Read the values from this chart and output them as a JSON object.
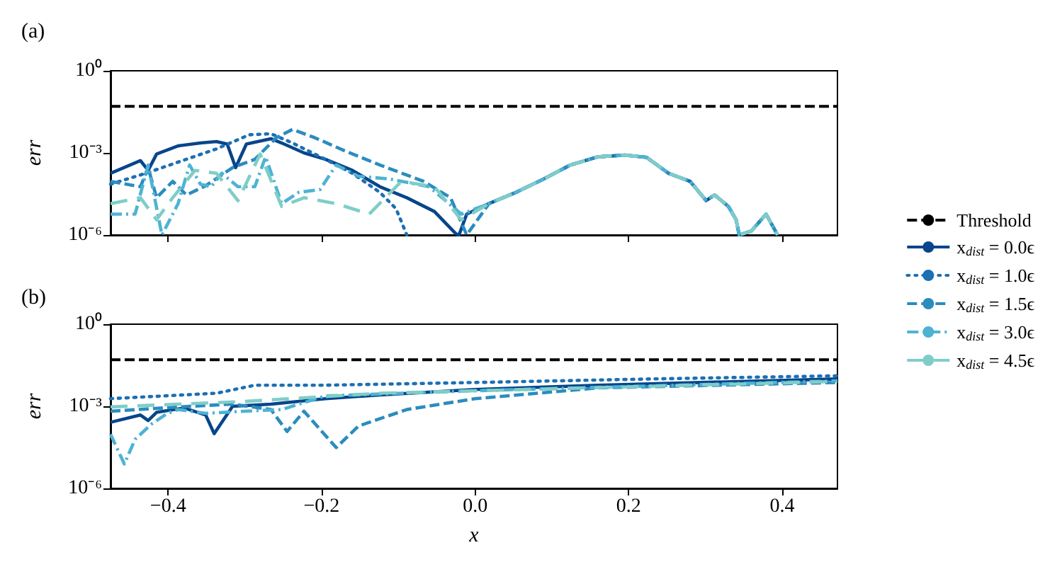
{
  "chart_data": [
    {
      "type": "line",
      "title": "(a)",
      "ylabel": "err",
      "log": "y",
      "tick_labels": "y",
      "marker": "none",
      "xlim": [
        -0.475,
        0.472
      ],
      "ylim": [
        1e-06,
        1
      ],
      "xticks": [
        {
          "value": -0.4,
          "label": null
        },
        {
          "value": -0.2,
          "label": null
        },
        {
          "value": 0,
          "label": null
        },
        {
          "value": 0.2,
          "label": null
        },
        {
          "value": 0.4,
          "label": null
        }
      ],
      "yticks": [
        {
          "value": 1e-06,
          "label": "10⁻⁶"
        },
        {
          "value": 0.001,
          "label": "10⁻³"
        },
        {
          "value": 1,
          "label": "10⁰"
        }
      ],
      "ref_lines": [
        {
          "axis": "y",
          "value": 0.05,
          "color": "#000000",
          "line_style": "dashed"
        }
      ],
      "series": [
        {
          "color": "#08458a",
          "line_style": "solid",
          "x": [
            -0.475,
            -0.436,
            -0.426,
            -0.415,
            -0.387,
            -0.358,
            -0.337,
            -0.323,
            -0.312,
            -0.298,
            -0.266,
            -0.252,
            -0.223,
            -0.195,
            -0.16,
            -0.124,
            -0.089,
            -0.053,
            -0.025,
            -0.021,
            -0.011,
            0.018,
            0.053,
            0.089,
            0.124,
            0.16,
            0.195,
            0.223,
            0.252,
            0.28,
            0.301,
            0.312,
            0.33,
            0.34,
            0.344,
            0.36,
            0.379,
            0.394
          ],
          "values": [
            0.00018,
            0.00052,
            0.00023,
            0.00091,
            0.0018,
            0.0023,
            0.0026,
            0.0021,
            0.00029,
            0.0021,
            0.0033,
            0.0023,
            0.001,
            0.00058,
            0.00023,
            5.8e-05,
            2.3e-05,
            7.2e-06,
            1.1e-06,
            1e-06,
            5.8e-06,
            1.4e-05,
            3.6e-05,
            0.00011,
            0.00036,
            0.00072,
            0.00083,
            0.00069,
            0.00018,
            9.1e-05,
            1.8e-05,
            2.9e-05,
            1.1e-05,
            3.6e-06,
            1e-06,
            1.4e-06,
            5.8e-06,
            1e-06
          ]
        },
        {
          "color": "#1c6fb3",
          "line_style": "dotted",
          "x": [
            -0.475,
            -0.429,
            -0.387,
            -0.337,
            -0.294,
            -0.266,
            -0.238,
            -0.195,
            -0.16,
            -0.124,
            -0.103,
            -0.089,
            -0.05,
            -0.011,
            0.018,
            0.053,
            0.089,
            0.124,
            0.16,
            0.195,
            0.223,
            0.252,
            0.28,
            0.301,
            0.312,
            0.33,
            0.34,
            0.344,
            0.36,
            0.379,
            0.394
          ],
          "values": [
            7.2e-05,
            0.00018,
            0.00046,
            0.0014,
            0.0046,
            0.005,
            0.0023,
            0.00058,
            0.00018,
            3.6e-05,
            9.1e-06,
            1e-06,
            null,
            5.8e-06,
            1.4e-05,
            3.6e-05,
            0.00011,
            0.00036,
            0.00072,
            0.00083,
            0.00069,
            0.00018,
            9.1e-05,
            1.8e-05,
            2.9e-05,
            1.1e-05,
            3.6e-06,
            1e-06,
            1.4e-06,
            5.8e-06,
            1e-06
          ]
        },
        {
          "color": "#2b8cbe",
          "line_style": "dashed",
          "x": [
            -0.475,
            -0.436,
            -0.426,
            -0.415,
            -0.394,
            -0.376,
            -0.351,
            -0.316,
            -0.287,
            -0.259,
            -0.238,
            -0.209,
            -0.167,
            -0.124,
            -0.067,
            -0.032,
            -0.011,
            0.018,
            0.053,
            0.089,
            0.124,
            0.16,
            0.195,
            0.223,
            0.252,
            0.28,
            0.301,
            0.312,
            0.33,
            0.34,
            0.344,
            0.36,
            0.379,
            0.394
          ],
          "values": [
            9.1e-05,
            5.8e-05,
            0.00029,
            2.3e-05,
            9.1e-05,
            2.9e-05,
            6.3e-05,
            0.00029,
            0.00058,
            0.0036,
            0.0072,
            0.0036,
            0.0011,
            0.00036,
            9.1e-05,
            2.3e-05,
            1e-06,
            1.4e-05,
            3.6e-05,
            0.00011,
            0.00036,
            0.00072,
            0.00083,
            0.00069,
            0.00018,
            9.1e-05,
            1.8e-05,
            2.9e-05,
            1.1e-05,
            3.6e-06,
            1e-06,
            1.4e-06,
            5.8e-06,
            1e-06
          ]
        },
        {
          "color": "#4eb3d3",
          "line_style": "dashdot",
          "x": [
            -0.475,
            -0.443,
            -0.426,
            -0.408,
            -0.387,
            -0.372,
            -0.358,
            -0.344,
            -0.33,
            -0.309,
            -0.287,
            -0.273,
            -0.252,
            -0.23,
            -0.202,
            -0.181,
            -0.152,
            -0.11,
            -0.06,
            -0.018,
            0.018,
            0.053,
            0.089,
            0.124,
            0.16,
            0.195,
            0.223,
            0.252,
            0.28,
            0.301,
            0.312,
            0.33,
            0.34,
            0.344,
            0.36,
            0.379,
            0.394
          ],
          "values": [
            5.8e-06,
            5.8e-06,
            0.00036,
            1e-06,
            1.4e-05,
            0.00036,
            7.2e-05,
            5.8e-05,
            0.00018,
            5.8e-05,
            5.8e-05,
            0.00072,
            1.4e-05,
            3.6e-05,
            4.6e-05,
            0.00036,
            0.00014,
            0.00011,
            5.8e-05,
            5.8e-06,
            1.4e-05,
            3.6e-05,
            0.00011,
            0.00036,
            0.00072,
            0.00083,
            0.00069,
            0.00018,
            9.1e-05,
            1.8e-05,
            2.9e-05,
            1.1e-05,
            3.6e-06,
            1e-06,
            1.4e-06,
            5.8e-06,
            1e-06
          ]
        },
        {
          "color": "#7fcdc8",
          "line_style": "longdash",
          "x": [
            -0.475,
            -0.436,
            -0.415,
            -0.394,
            -0.365,
            -0.337,
            -0.309,
            -0.28,
            -0.252,
            -0.223,
            -0.181,
            -0.138,
            -0.096,
            -0.053,
            -0.018,
            0.018,
            0.053,
            0.089,
            0.124,
            0.16,
            0.195,
            0.223,
            0.252,
            0.28,
            0.301,
            0.312,
            0.33,
            0.34,
            0.344,
            0.36,
            0.379,
            0.394
          ],
          "values": [
            1.4e-05,
            2.3e-05,
            3.6e-06,
            2.3e-05,
            0.00023,
            0.00018,
            1.8e-05,
            0.00091,
            1.1e-05,
            2.3e-05,
            1.4e-05,
            5.8e-06,
            9.1e-05,
            5.8e-05,
            3.6e-06,
            1.4e-05,
            3.6e-05,
            0.00011,
            0.00036,
            0.00072,
            0.00083,
            0.00069,
            0.00018,
            9.1e-05,
            1.8e-05,
            2.9e-05,
            1.1e-05,
            3.6e-06,
            1e-06,
            1.4e-06,
            5.8e-06,
            1e-06
          ]
        }
      ]
    },
    {
      "type": "line",
      "title": "(b)",
      "xlabel": "x",
      "ylabel": "err",
      "log": "y",
      "marker": "none",
      "legend": "right",
      "xlim": [
        -0.475,
        0.472
      ],
      "ylim": [
        1e-06,
        1
      ],
      "xticks": [
        {
          "value": -0.4,
          "label": "−0.4"
        },
        {
          "value": -0.2,
          "label": "−0.2"
        },
        {
          "value": 0,
          "label": "0.0"
        },
        0.2,
        0.4
      ],
      "yticks": [
        {
          "value": 1e-06,
          "label": "10⁻⁶"
        },
        {
          "value": 0.001,
          "label": "10⁻³"
        },
        {
          "value": 1,
          "label": "10⁰"
        }
      ],
      "ref_lines": [
        {
          "axis": "y",
          "value": 0.05,
          "label": "Threshold",
          "color": "#000000",
          "line_style": "dashed"
        }
      ],
      "series": [
        {
          "name": "x$_{dist}$ = 0.0ϵ",
          "color": "#08458a",
          "line_style": "solid",
          "x": [
            -0.475,
            -0.436,
            -0.426,
            -0.415,
            -0.379,
            -0.351,
            -0.34,
            -0.316,
            -0.266,
            -0.195,
            -0.124,
            0,
            0.16,
            0.472
          ],
          "values": [
            0.00026,
            0.00048,
            0.0003,
            0.0006,
            0.00087,
            0.00048,
            0.0001,
            0.001,
            0.0012,
            0.0019,
            0.0026,
            0.0041,
            0.0059,
            0.01
          ]
        },
        {
          "name": "x$_{dist}$ = 1.0ϵ",
          "color": "#1c6fb3",
          "line_style": "dotted",
          "x": [
            -0.475,
            -0.337,
            -0.287,
            -0.195,
            0,
            0.231,
            0.472
          ],
          "values": [
            0.0019,
            0.003,
            0.0059,
            0.0059,
            0.0074,
            0.01,
            0.013
          ]
        },
        {
          "name": "x$_{dist}$ = 1.5ϵ",
          "color": "#2b8cbe",
          "line_style": "dashed",
          "x": [
            -0.475,
            -0.372,
            -0.316,
            -0.266,
            -0.245,
            -0.223,
            -0.181,
            -0.152,
            -0.089,
            0,
            0.16,
            0.472
          ],
          "values": [
            0.00066,
            0.001,
            0.0012,
            0.00076,
            0.00012,
            0.00066,
            3.1e-05,
            0.00019,
            0.00076,
            0.0019,
            0.0047,
            0.0074
          ]
        },
        {
          "name": "x$_{dist}$ = 3.0ϵ",
          "color": "#4eb3d3",
          "line_style": "dashdot",
          "x": [
            -0.475,
            -0.457,
            -0.443,
            -0.422,
            -0.401,
            -0.387,
            -0.351,
            -0.301,
            -0.252,
            -0.195,
            0,
            0.472
          ],
          "values": [
            9.5e-05,
            7.8e-06,
            6.2e-05,
            0.00022,
            0.00055,
            0.00076,
            0.00055,
            0.00066,
            0.00076,
            0.0024,
            0.0037,
            0.0085
          ]
        },
        {
          "name": "x$_{dist}$ = 4.5ϵ",
          "color": "#7fcdc8",
          "line_style": "longdash",
          "x": [
            -0.475,
            -0.301,
            -0.124,
            0,
            0.472
          ],
          "values": [
            0.00095,
            0.0015,
            0.003,
            0.0037,
            0.0081
          ]
        }
      ]
    }
  ]
}
